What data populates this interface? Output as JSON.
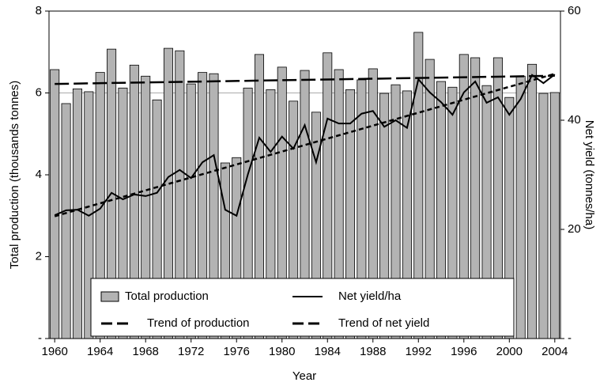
{
  "chart_data": {
    "type": "bar_line",
    "x_label": "Year",
    "y_label": "Total production (thousands tonnes)",
    "y2_label": "Net yield (tonnes/ha)",
    "categories": [
      "1960",
      null,
      null,
      null,
      "1964",
      null,
      null,
      null,
      "1968",
      null,
      null,
      null,
      "1972",
      null,
      null,
      null,
      "1976",
      null,
      null,
      null,
      "1980",
      null,
      null,
      null,
      "1984",
      null,
      null,
      null,
      "1988",
      null,
      null,
      null,
      "1992",
      null,
      null,
      null,
      "1996",
      null,
      null,
      null,
      "2000",
      null,
      null,
      null,
      "2004"
    ],
    "series": [
      {
        "name": "Total production",
        "kind": "bar",
        "color": "#b3b3b3",
        "axis": "y",
        "values": [
          6.57,
          5.74,
          6.1,
          6.03,
          6.5,
          7.07,
          6.12,
          6.68,
          6.41,
          5.83,
          7.09,
          7.03,
          6.22,
          6.5,
          6.47,
          4.29,
          4.42,
          6.12,
          6.94,
          6.08,
          6.63,
          5.8,
          6.55,
          5.53,
          6.98,
          6.57,
          6.08,
          6.32,
          6.59,
          5.99,
          6.2,
          6.05,
          7.48,
          6.82,
          6.28,
          6.14,
          6.94,
          6.86,
          6.18,
          6.86,
          5.89,
          6.41,
          6.7,
          5.99,
          6.01
        ]
      },
      {
        "name": "Net yield/ha",
        "kind": "line",
        "color": "#000000",
        "axis": "y2",
        "values": [
          22.6,
          23.5,
          23.6,
          22.5,
          23.8,
          26.7,
          25.5,
          26.4,
          26.1,
          26.7,
          29.6,
          30.9,
          29.4,
          32.3,
          33.6,
          23.6,
          22.5,
          30.1,
          36.8,
          34.2,
          37.0,
          34.8,
          39.1,
          32.3,
          40.3,
          39.4,
          39.4,
          41.2,
          41.7,
          38.8,
          40.0,
          38.6,
          47.5,
          45.1,
          43.3,
          41.0,
          45.1,
          47.1,
          43.2,
          44.2,
          41.0,
          43.9,
          48.3,
          46.8,
          48.4
        ]
      }
    ],
    "trends": [
      {
        "name": "Trend of production",
        "axis": "y",
        "color": "#000000",
        "start": 6.22,
        "end": 6.42
      },
      {
        "name": "Trend of net yield",
        "axis": "y2",
        "color": "#000000",
        "start": 22.4,
        "end": 48.5
      }
    ],
    "ylim": [
      0,
      8
    ],
    "yticks": [
      {
        "value": 0,
        "label": "-"
      },
      2,
      4,
      6,
      8
    ],
    "y2lim": [
      0,
      60
    ],
    "y2ticks": [
      {
        "value": 0,
        "label": "-"
      },
      20,
      40,
      60
    ],
    "grid_at": [
      6
    ],
    "legend": "bottom"
  }
}
